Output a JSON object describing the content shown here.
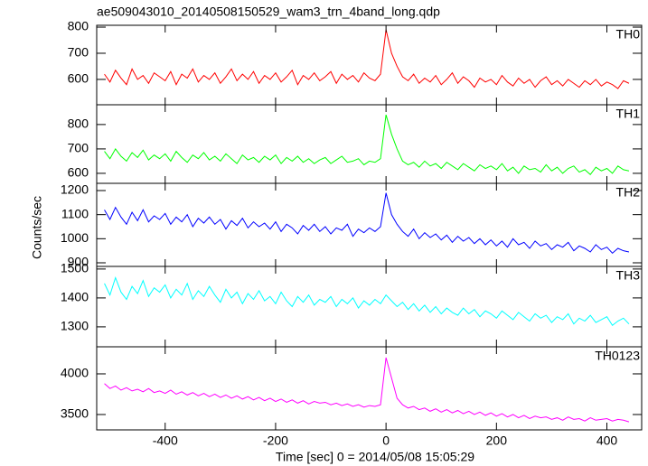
{
  "chart_data": {
    "type": "line",
    "title": "ae509043010_20140508150529_wam3_trn_4band_long.qdp",
    "x_label": "Time [sec] 0 = 2014/05/08 15:05:29",
    "y_label": "Counts/sec",
    "xlim": [
      -524,
      463
    ],
    "xticks": [
      -400,
      -200,
      0,
      200,
      400
    ],
    "x": [
      -510,
      -500,
      -490,
      -480,
      -470,
      -460,
      -450,
      -440,
      -430,
      -420,
      -410,
      -400,
      -390,
      -380,
      -370,
      -360,
      -350,
      -340,
      -330,
      -320,
      -310,
      -300,
      -290,
      -280,
      -270,
      -260,
      -250,
      -240,
      -230,
      -220,
      -210,
      -200,
      -190,
      -180,
      -170,
      -160,
      -150,
      -140,
      -130,
      -120,
      -110,
      -100,
      -90,
      -80,
      -70,
      -60,
      -50,
      -40,
      -30,
      -20,
      -10,
      0,
      10,
      20,
      30,
      40,
      50,
      60,
      70,
      80,
      90,
      100,
      110,
      120,
      130,
      140,
      150,
      160,
      170,
      180,
      190,
      200,
      210,
      220,
      230,
      240,
      250,
      260,
      270,
      280,
      290,
      300,
      310,
      320,
      330,
      340,
      350,
      360,
      370,
      380,
      390,
      400,
      410,
      420,
      430,
      440
    ],
    "panels": [
      {
        "name": "TH0",
        "color": "#ff0000",
        "ylim": [
          503,
          807
        ],
        "yticks": [
          600,
          700,
          800
        ],
        "values": [
          620,
          590,
          635,
          605,
          580,
          640,
          600,
          615,
          585,
          625,
          610,
          595,
          630,
          580,
          620,
          605,
          640,
          590,
          615,
          600,
          625,
          585,
          610,
          640,
          595,
          620,
          600,
          630,
          585,
          615,
          600,
          625,
          590,
          610,
          635,
          580,
          615,
          600,
          625,
          595,
          610,
          630,
          585,
          620,
          600,
          615,
          590,
          625,
          605,
          595,
          620,
          790,
          700,
          650,
          610,
          595,
          620,
          585,
          605,
          590,
          615,
          580,
          600,
          625,
          585,
          610,
          595,
          570,
          605,
          590,
          600,
          580,
          615,
          590,
          575,
          605,
          585,
          600,
          570,
          595,
          610,
          580,
          595,
          575,
          600,
          585,
          570,
          595,
          580,
          600,
          575,
          590,
          580,
          565,
          595,
          585
        ]
      },
      {
        "name": "TH1",
        "color": "#00ff00",
        "ylim": [
          559,
          881
        ],
        "yticks": [
          600,
          700,
          800
        ],
        "values": [
          690,
          660,
          700,
          670,
          650,
          685,
          665,
          695,
          655,
          675,
          660,
          680,
          650,
          690,
          665,
          645,
          675,
          660,
          685,
          655,
          670,
          650,
          680,
          660,
          640,
          675,
          655,
          665,
          645,
          670,
          655,
          675,
          640,
          665,
          650,
          670,
          645,
          660,
          640,
          655,
          665,
          640,
          655,
          670,
          645,
          650,
          660,
          635,
          650,
          645,
          660,
          840,
          760,
          700,
          650,
          635,
          645,
          625,
          650,
          630,
          640,
          620,
          645,
          630,
          615,
          640,
          625,
          610,
          635,
          620,
          630,
          615,
          640,
          610,
          625,
          600,
          630,
          615,
          620,
          605,
          635,
          610,
          625,
          600,
          620,
          630,
          605,
          615,
          595,
          625,
          610,
          620,
          600,
          630,
          615,
          610
        ]
      },
      {
        "name": "TH2",
        "color": "#0000ff",
        "ylim": [
          885,
          1230
        ],
        "yticks": [
          900,
          1000,
          1100,
          1200
        ],
        "values": [
          1120,
          1080,
          1130,
          1090,
          1060,
          1110,
          1075,
          1120,
          1070,
          1095,
          1080,
          1105,
          1060,
          1090,
          1070,
          1100,
          1050,
          1085,
          1065,
          1090,
          1060,
          1080,
          1040,
          1075,
          1055,
          1085,
          1045,
          1070,
          1050,
          1065,
          1040,
          1070,
          1030,
          1060,
          1045,
          1020,
          1055,
          1035,
          1060,
          1030,
          1050,
          1020,
          1045,
          1035,
          1060,
          1010,
          1040,
          1025,
          1045,
          1030,
          1050,
          1190,
          1100,
          1060,
          1030,
          1010,
          1040,
          1000,
          1025,
          1005,
          1020,
          995,
          1015,
          985,
          1010,
          990,
          1005,
          980,
          1000,
          975,
          995,
          970,
          990,
          965,
          1000,
          975,
          985,
          960,
          990,
          970,
          980,
          955,
          975,
          965,
          985,
          950,
          970,
          960,
          945,
          975,
          955,
          965,
          940,
          960,
          950,
          945
        ]
      },
      {
        "name": "TH3",
        "color": "#00ffff",
        "ylim": [
          1231,
          1509
        ],
        "yticks": [
          1300,
          1400,
          1500
        ],
        "values": [
          1450,
          1410,
          1470,
          1420,
          1395,
          1440,
          1415,
          1460,
          1405,
          1435,
          1420,
          1445,
          1400,
          1430,
          1410,
          1450,
          1395,
          1425,
          1405,
          1440,
          1410,
          1385,
          1430,
          1400,
          1420,
          1380,
          1415,
          1395,
          1425,
          1390,
          1405,
          1380,
          1420,
          1390,
          1370,
          1405,
          1385,
          1410,
          1375,
          1395,
          1385,
          1405,
          1370,
          1395,
          1380,
          1400,
          1365,
          1390,
          1375,
          1395,
          1380,
          1410,
          1390,
          1370,
          1385,
          1360,
          1380,
          1355,
          1375,
          1350,
          1370,
          1345,
          1365,
          1350,
          1340,
          1365,
          1345,
          1360,
          1335,
          1355,
          1345,
          1330,
          1355,
          1340,
          1325,
          1350,
          1335,
          1320,
          1345,
          1330,
          1340,
          1315,
          1335,
          1325,
          1345,
          1310,
          1330,
          1320,
          1340,
          1315,
          1325,
          1335,
          1305,
          1320,
          1330,
          1310
        ]
      },
      {
        "name": "TH0123",
        "color": "#ff00ff",
        "ylim": [
          3311,
          4333
        ],
        "yticks": [
          3500,
          4000
        ],
        "values": [
          3880,
          3820,
          3850,
          3800,
          3830,
          3790,
          3810,
          3780,
          3820,
          3770,
          3790,
          3760,
          3800,
          3750,
          3780,
          3740,
          3770,
          3730,
          3760,
          3720,
          3750,
          3710,
          3740,
          3700,
          3730,
          3690,
          3720,
          3680,
          3710,
          3670,
          3700,
          3660,
          3690,
          3650,
          3680,
          3640,
          3670,
          3630,
          3660,
          3640,
          3650,
          3620,
          3640,
          3610,
          3630,
          3600,
          3620,
          3590,
          3610,
          3600,
          3620,
          4200,
          3950,
          3700,
          3620,
          3580,
          3600,
          3560,
          3580,
          3540,
          3570,
          3530,
          3560,
          3520,
          3550,
          3510,
          3540,
          3500,
          3530,
          3490,
          3520,
          3480,
          3510,
          3470,
          3500,
          3460,
          3490,
          3450,
          3480,
          3460,
          3470,
          3440,
          3460,
          3430,
          3470,
          3440,
          3450,
          3420,
          3460,
          3430,
          3440,
          3450,
          3420,
          3440,
          3430,
          3410
        ]
      }
    ]
  }
}
